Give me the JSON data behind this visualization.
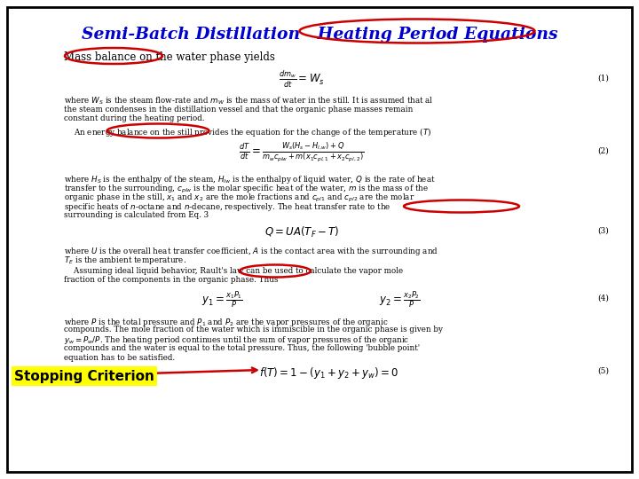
{
  "title": "Semi-Batch Distillation   Heating Period Equations",
  "title_color": "#0000CC",
  "background_color": "#FFFFFF",
  "border_color": "#000000",
  "subtitle": "Mass balance on the water phase yields",
  "eq1": "$\\frac{dm_w}{dt} = W_s$",
  "eq1_label": "(1)",
  "text1_lines": [
    "where $W_S$ is the steam flow-rate and $m_W$ is the mass of water in the still. It is assumed that al",
    "the steam condenses in the distillation vessel and that the organic phase masses remain",
    "constant during the heating period."
  ],
  "text2_indent": "    An energy balance on the still provides the equation for the change of the temperature ($T$)",
  "eq2_num": "$\\frac{dT}{dt} = \\frac{W_s(H_s - H_{l,w}) + Q}{m_w c_{plw} + m(x_1 c_{pl,1} + x_2 c_{pl,2})}$",
  "eq2_label": "(2)",
  "text3_lines": [
    "where $H_S$ is the enthalpy of the steam, $H_{lw}$ is the enthalpy of liquid water, $Q$ is the rate of heat",
    "transfer to the surrounding, $c_{plw}$ is the molar specific heat of the water, $m$ is the mass of the",
    "organic phase in the still, $x_1$ and $x_2$ are the mole fractions and $c_{pl1}$ and $c_{pl2}$ are the molar",
    "specific heats of $n$-octane and $n$-decane, respectively. The heat transfer rate to the",
    "surrounding is calculated from Eq. 3"
  ],
  "eq3": "$Q = UA(T_F - T)$",
  "eq3_label": "(3)",
  "text4_lines": [
    "where $U$ is the overall heat transfer coefficient, $A$ is the contact area with the surrounding and",
    "$T_E$ is the ambient temperature."
  ],
  "text5_lines": [
    "    Assuming ideal liquid behavior, Rault's law can be used to calculate the vapor mole",
    "fraction of the components in the organic phase. Thus"
  ],
  "eq4a": "$y_1 = \\frac{x_1 P_1}{P}$",
  "eq4b": "$y_2 = \\frac{x_2 P_2}{P}$",
  "eq4_label": "(4)",
  "text6_lines": [
    "where $P$ is the total pressure and $P_1$ and $P_2$ are the vapor pressures of the organic",
    "compounds. The mole fraction of the water which is immiscible in the organic phase is given by",
    "$y_w = P_w / P$. The heating period continues until the sum of vapor pressures of the organic",
    "compounds and the water is equal to the total pressure. Thus, the following 'bubble point'",
    "equation has to be satisfied."
  ],
  "eq5": "$f(T) = 1 - (y_1 + y_2 + y_w) = 0$",
  "eq5_label": "(5)",
  "stopping_label": "Stopping Criterion",
  "stopping_bg": "#FFFF00",
  "stopping_color": "#000000",
  "circle_color": "#CC0000"
}
